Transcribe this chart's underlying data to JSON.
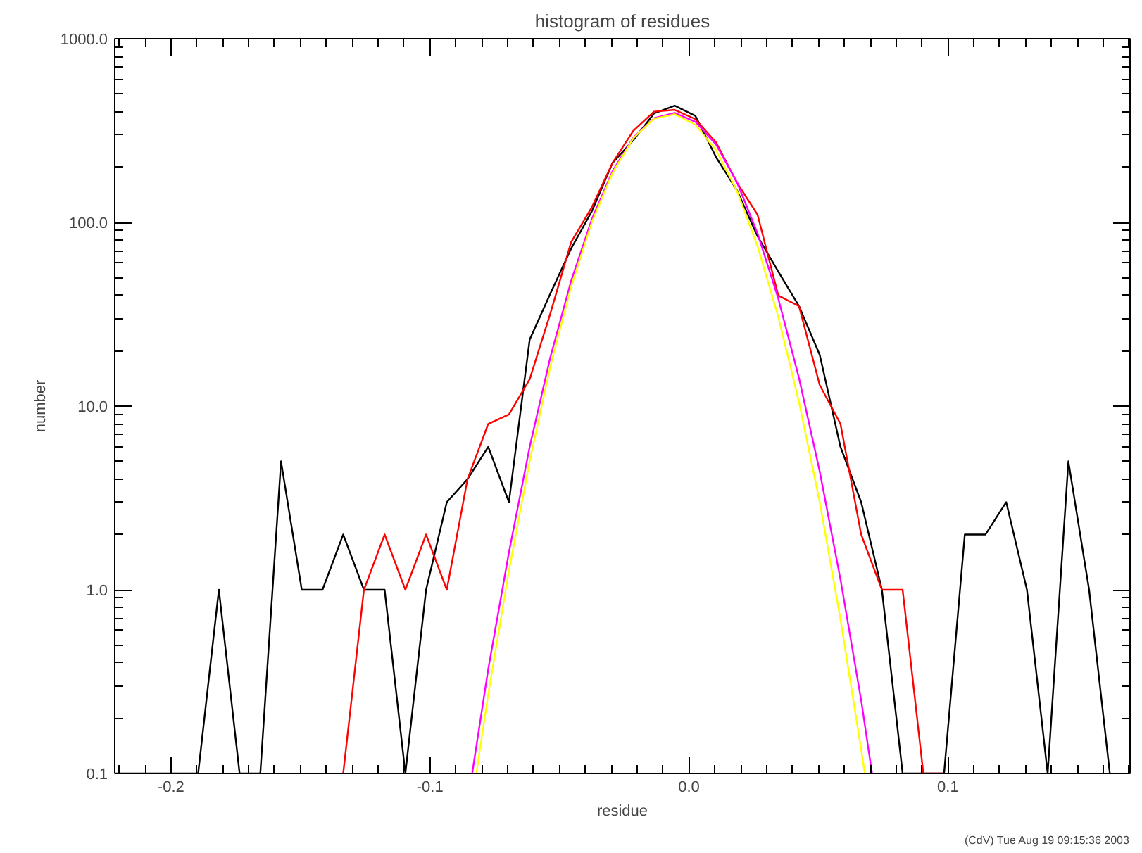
{
  "chart_data": {
    "type": "line",
    "title": "histogram of residues",
    "xlabel": "residue",
    "ylabel": "number",
    "annotations": [
      "(CdV) Tue Aug 19 09:15:36 2003"
    ],
    "log": "y",
    "grid": false,
    "marker": "none",
    "line_style": "solid",
    "xlim": [
      -0.2217,
      0.1703
    ],
    "xticks": [
      -0.2,
      -0.1,
      {
        "value": 0,
        "label": "0.0"
      },
      0.1
    ],
    "ylim": [
      0.1,
      1000
    ],
    "yticks": [
      0.1,
      {
        "value": 1,
        "label": "1.0"
      },
      {
        "value": 10,
        "label": "10.0"
      },
      {
        "value": 100,
        "label": "100.0"
      },
      {
        "value": 1000,
        "label": "1000.0"
      }
    ],
    "x": [
      -0.2215,
      -0.2135,
      -0.2055,
      -0.1975,
      -0.1895,
      -0.1815,
      -0.1735,
      -0.1655,
      -0.1575,
      -0.1495,
      -0.1415,
      -0.1335,
      -0.1255,
      -0.1175,
      -0.1095,
      -0.1015,
      -0.0935,
      -0.0855,
      -0.0775,
      -0.0695,
      -0.0615,
      -0.0535,
      -0.0455,
      -0.0375,
      -0.0295,
      -0.0215,
      -0.0135,
      -0.0055,
      0.0025,
      0.0105,
      0.0185,
      0.0265,
      0.0345,
      0.0425,
      0.0505,
      0.0585,
      0.0665,
      0.0745,
      0.0825,
      0.0905,
      0.0985,
      0.1065,
      0.1145,
      0.1225,
      0.1305,
      0.1385,
      0.1465,
      0.1545,
      0.1625
    ],
    "series": [
      {
        "color": "#000000",
        "values": [
          0.1,
          0.1,
          0.1,
          0.1,
          0.1,
          1,
          0.1,
          0.1,
          5,
          1,
          1,
          2,
          1,
          1,
          0.1,
          1,
          3,
          4,
          6,
          3,
          23,
          41,
          72,
          115,
          211,
          280,
          392,
          432,
          380,
          226,
          150,
          84,
          54,
          35,
          19,
          6,
          3,
          1,
          0.1,
          0.1,
          0.1,
          2,
          2,
          3,
          1,
          0.1,
          5,
          1,
          0.1
        ]
      },
      {
        "color": "#ff0000",
        "values": [
          null,
          null,
          null,
          null,
          null,
          null,
          null,
          null,
          null,
          null,
          null,
          0.1,
          1,
          2,
          1,
          2,
          1,
          4,
          8,
          9,
          14,
          32,
          78,
          121,
          211,
          315,
          401,
          410,
          365,
          272,
          165,
          110,
          40,
          35,
          13,
          8,
          2,
          1,
          1,
          0.1,
          0.1,
          null,
          null,
          null,
          null,
          null,
          null,
          null,
          null
        ]
      },
      {
        "color": "#ff00ff",
        "x": [
          -0.0837,
          -0.0775,
          -0.0695,
          -0.0615,
          -0.0535,
          -0.0455,
          -0.0375,
          -0.0295,
          -0.0215,
          -0.0135,
          -0.0055,
          0.0025,
          0.0105,
          0.0185,
          0.0265,
          0.0345,
          0.0425,
          0.0505,
          0.0585,
          0.0665,
          0.0707
        ],
        "values": [
          0.1,
          0.37,
          1.6,
          6,
          18.5,
          48,
          104,
          190,
          289,
          369,
          395,
          353,
          265,
          166,
          87,
          38.5,
          14.2,
          4.4,
          1.14,
          0.25,
          0.1
        ]
      },
      {
        "color": "#ffff00",
        "x": [
          -0.0821,
          -0.0775,
          -0.0695,
          -0.0615,
          -0.0535,
          -0.0455,
          -0.0375,
          -0.0295,
          -0.0215,
          -0.0135,
          -0.0055,
          0.0025,
          0.0105,
          0.0185,
          0.0265,
          0.0345,
          0.0425,
          0.0505,
          0.0585,
          0.0665,
          0.0679
        ],
        "values": [
          0.1,
          0.27,
          1.27,
          5,
          16.5,
          44.6,
          100,
          186,
          287,
          367,
          388,
          340,
          247,
          149,
          74,
          30.6,
          10.5,
          3,
          0.69,
          0.135,
          0.1
        ]
      }
    ]
  }
}
